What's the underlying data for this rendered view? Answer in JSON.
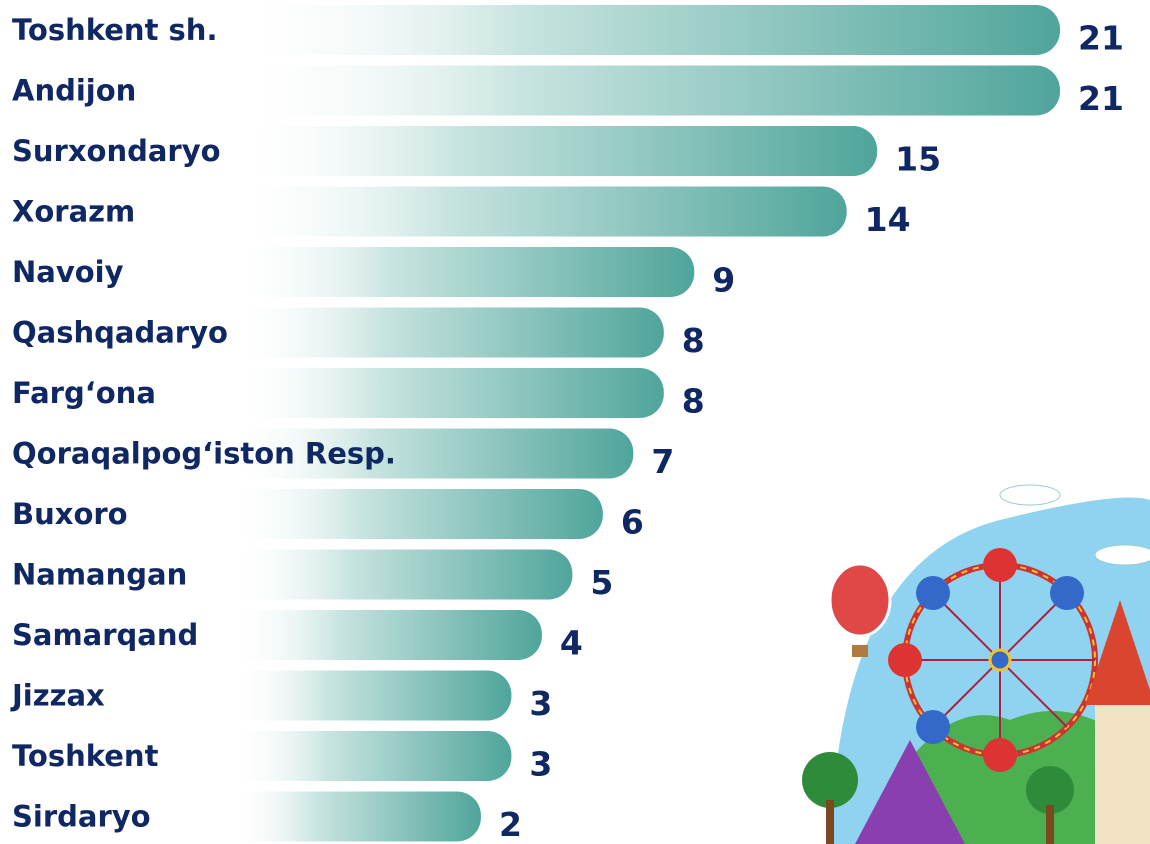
{
  "chart_data": {
    "type": "bar",
    "categories": [
      "Toshkent sh.",
      "Andijon",
      "Surxondaryo",
      "Xorazm",
      "Navoiy",
      "Qashqadaryo",
      "Farg‘ona",
      "Qoraqalpog‘iston Resp.",
      "Buxoro",
      "Namangan",
      "Samarqand",
      "Jizzax",
      "Toshkent",
      "Sirdaryo"
    ],
    "values": [
      21,
      21,
      15,
      14,
      9,
      8,
      8,
      7,
      6,
      5,
      4,
      3,
      3,
      2
    ],
    "color": "#4fa59b"
  }
}
